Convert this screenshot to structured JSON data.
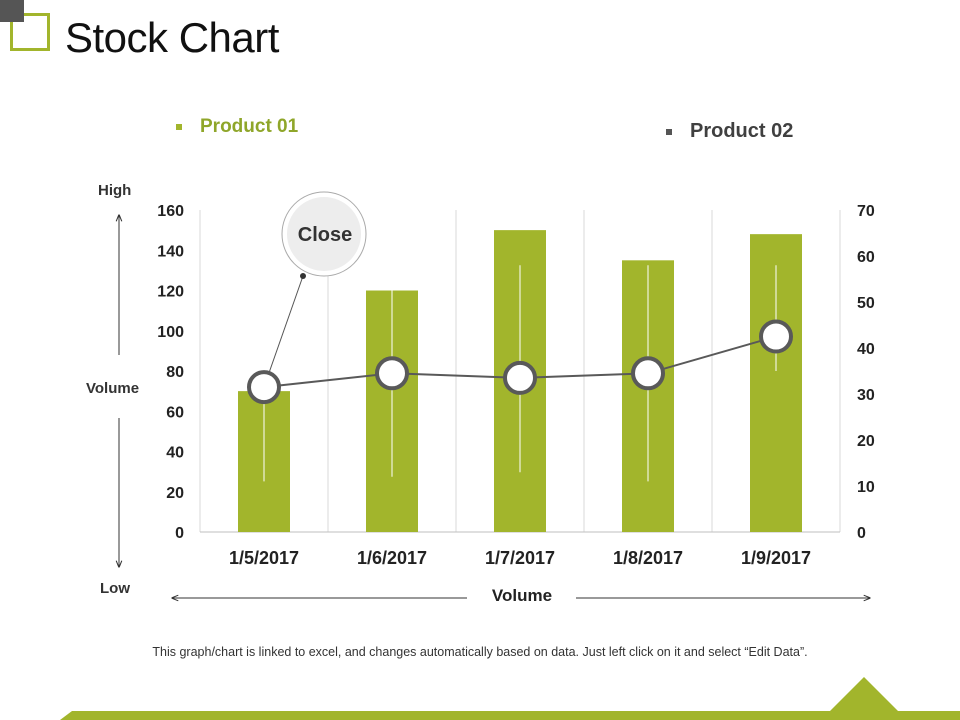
{
  "title": "Stock Chart",
  "legend": [
    {
      "label": "Product 01",
      "color": "#8fa62a"
    },
    {
      "label": "Product 02",
      "color": "#404040"
    }
  ],
  "side_labels": {
    "high": "High",
    "volume": "Volume",
    "low": "Low"
  },
  "callout_label": "Close",
  "footnote": "This graph/chart is linked to excel, and changes automatically based on data. Just left click on it and select “Edit Data”.",
  "colors": {
    "accent": "#a2b52c",
    "line": "#595959",
    "grid": "#d9d9d9"
  },
  "chart_data": {
    "type": "bar",
    "title": "",
    "xlabel": "Volume",
    "categories": [
      "1/5/2017",
      "1/6/2017",
      "1/7/2017",
      "1/8/2017",
      "1/9/2017"
    ],
    "ylim": [
      0,
      160
    ],
    "yticks": [
      "0",
      "20",
      "40",
      "60",
      "80",
      "100",
      "120",
      "140",
      "160"
    ],
    "y2lim": [
      0,
      70
    ],
    "y2ticks": [
      "0",
      "10",
      "20",
      "30",
      "40",
      "50",
      "60",
      "70"
    ],
    "series": [
      {
        "name": "Volume",
        "axis": "left",
        "kind": "bar",
        "values": [
          70,
          120,
          150,
          135,
          148
        ]
      },
      {
        "name": "High",
        "axis": "right",
        "kind": "range-high",
        "values": [
          32,
          58,
          58,
          58,
          58
        ]
      },
      {
        "name": "Low",
        "axis": "right",
        "kind": "range-low",
        "values": [
          11,
          12,
          13,
          11,
          35
        ]
      },
      {
        "name": "Close",
        "axis": "right",
        "kind": "line",
        "values": [
          31.5,
          34.5,
          33.5,
          34.5,
          42.5
        ]
      }
    ]
  }
}
